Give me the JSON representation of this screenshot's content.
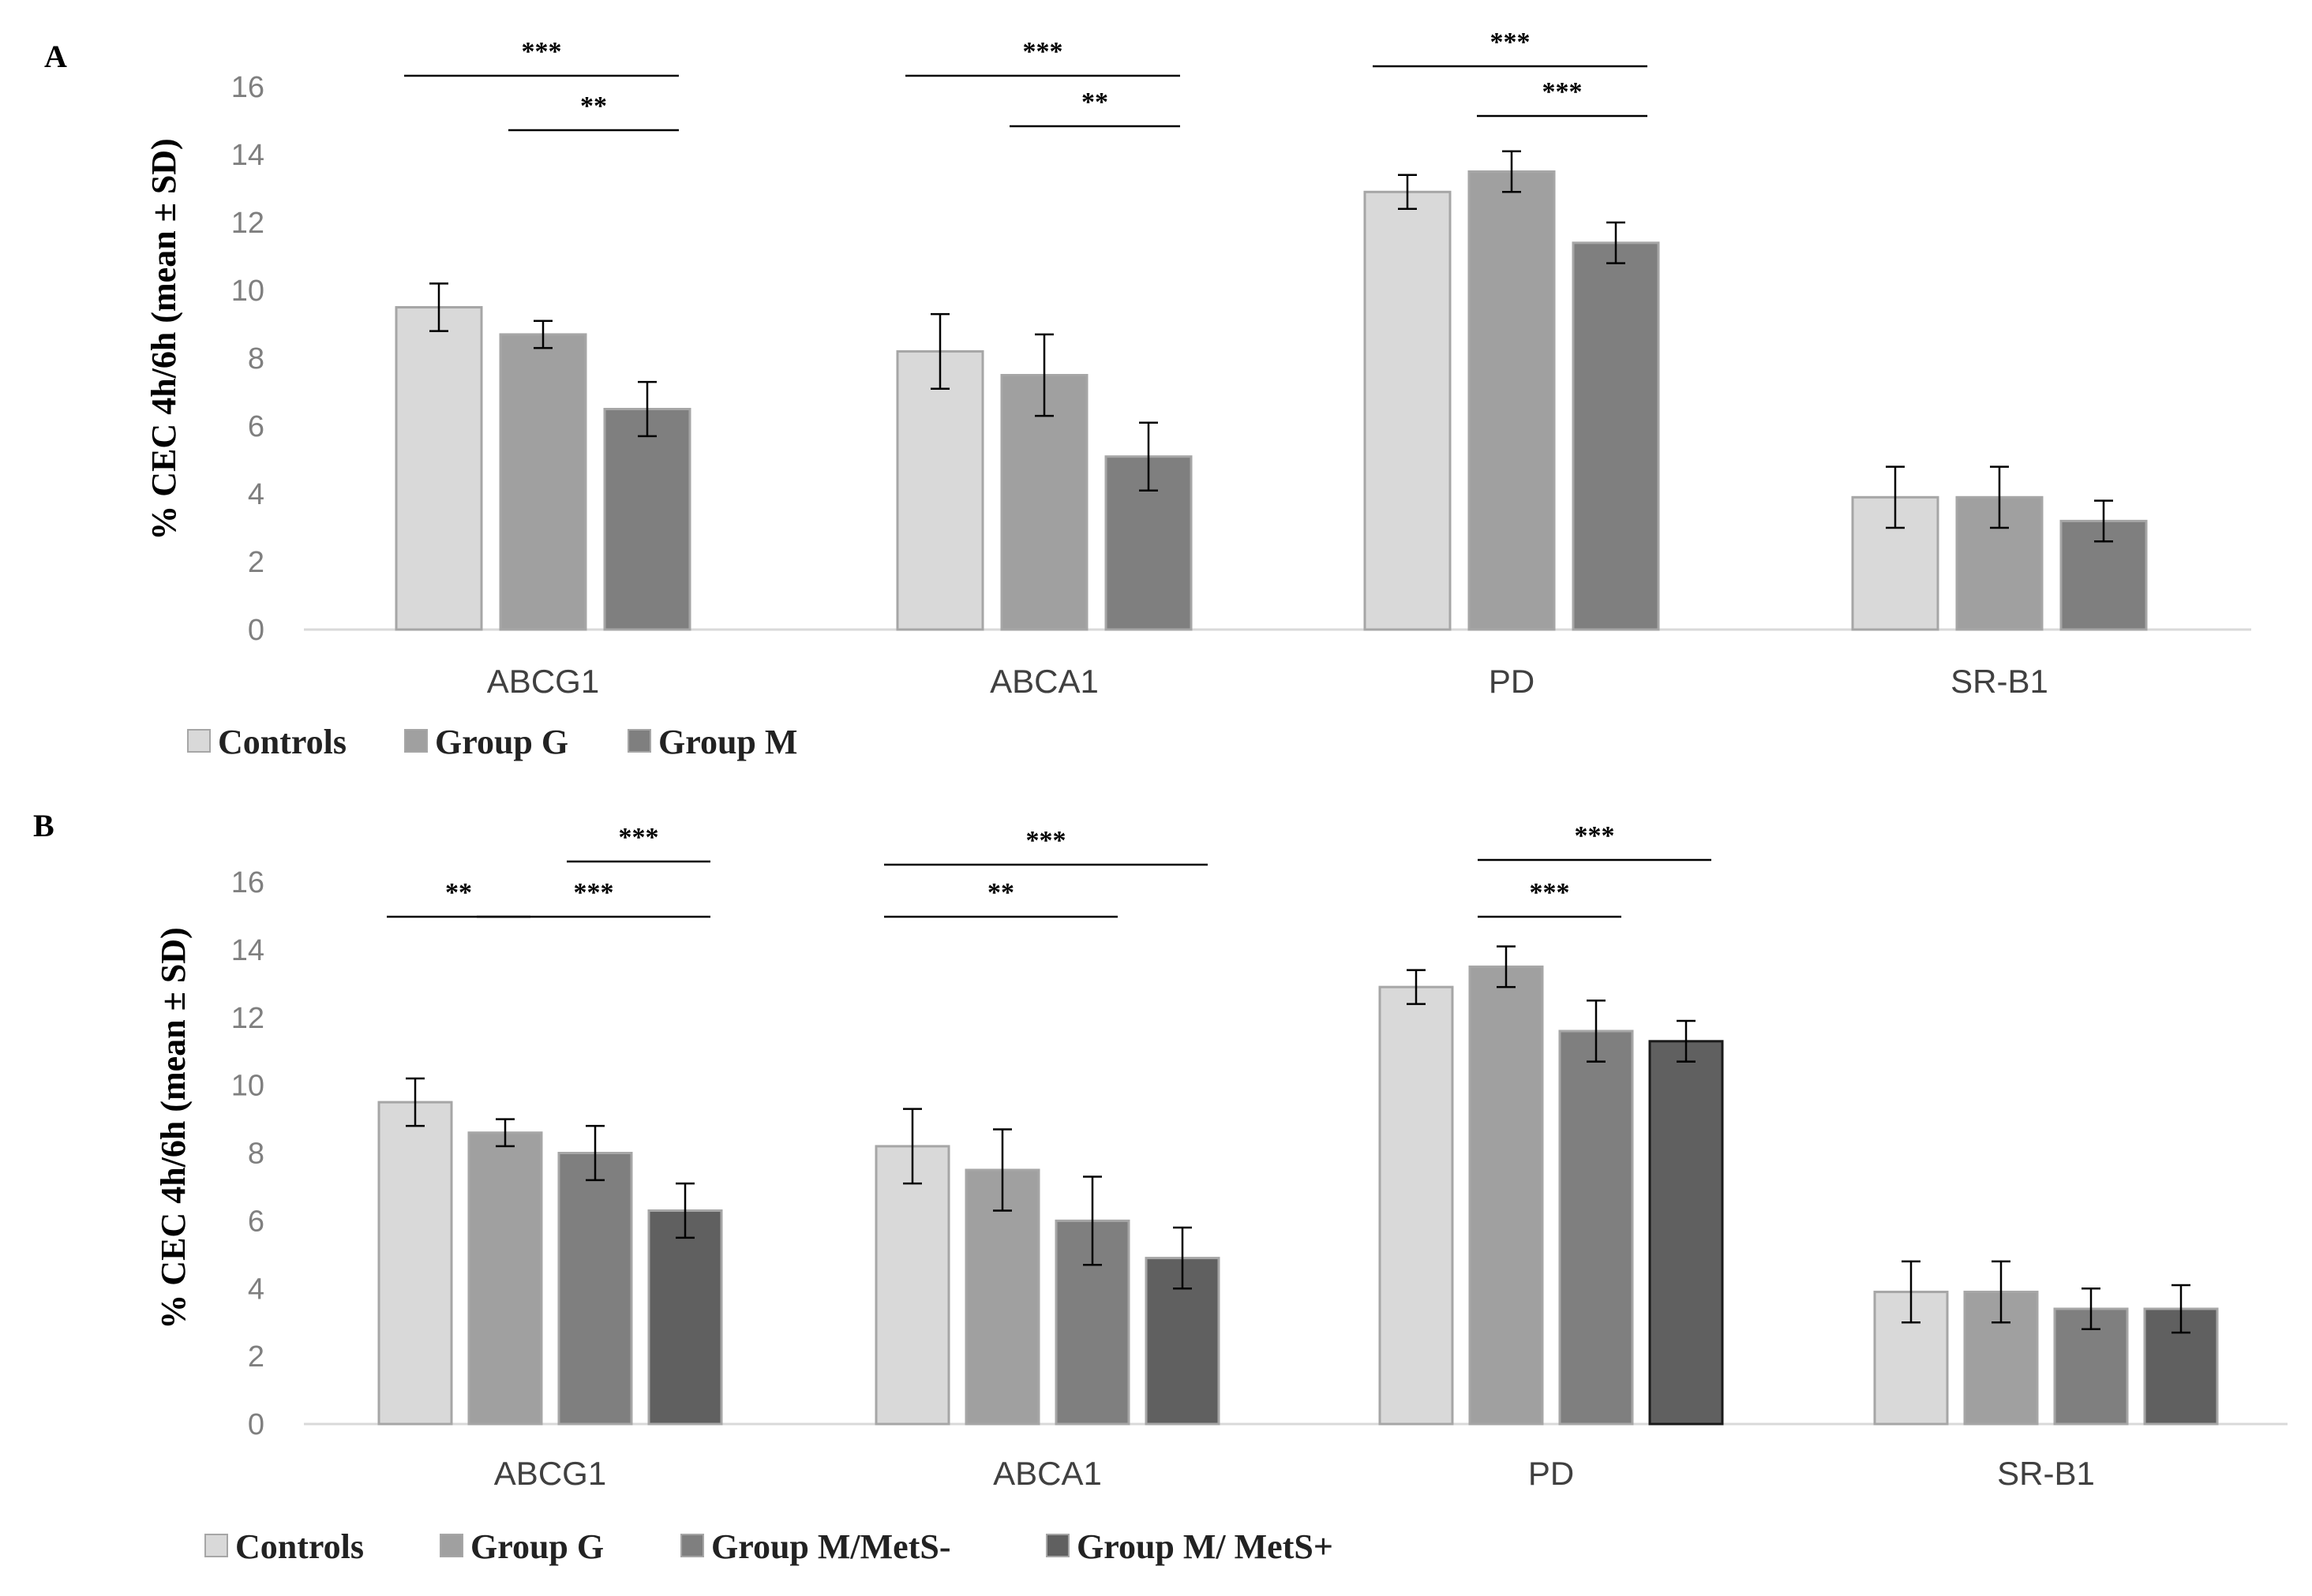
{
  "colors": {
    "controls": "#d9d9d9",
    "group_g": "#a0a0a0",
    "group_m": "#7f7f7f",
    "metsplus": "#606060",
    "bar_edge": "#a6a6a6",
    "axis": "#d9d9d9",
    "error": "#000000"
  },
  "chart_data": [
    {
      "panel": "A",
      "type": "bar",
      "ylabel": "% CEC  4h/6h (mean ± SD)",
      "ylim": [
        0,
        16
      ],
      "yticks": [
        0,
        2,
        4,
        6,
        8,
        10,
        12,
        14,
        16
      ],
      "categories": [
        "ABCG1",
        "ABCA1",
        "PD",
        "SR-B1"
      ],
      "series": [
        {
          "name": "Controls",
          "color_key": "controls",
          "values": [
            9.5,
            8.2,
            12.9,
            3.9
          ],
          "sd": [
            0.7,
            1.1,
            0.5,
            0.9
          ]
        },
        {
          "name": "Group G",
          "color_key": "group_g",
          "values": [
            8.7,
            7.5,
            13.5,
            3.9
          ],
          "sd": [
            0.4,
            1.2,
            0.6,
            0.9
          ]
        },
        {
          "name": "Group M",
          "color_key": "group_m",
          "values": [
            6.5,
            5.1,
            11.4,
            3.2
          ],
          "sd": [
            0.8,
            1.0,
            0.6,
            0.6
          ]
        }
      ],
      "legend": [
        "Controls",
        "Group G",
        "Group M"
      ],
      "significance": [
        {
          "category": 0,
          "from": 0,
          "to": 2,
          "label": "***"
        },
        {
          "category": 0,
          "from": 1,
          "to": 2,
          "label": "**"
        },
        {
          "category": 1,
          "from": 0,
          "to": 2,
          "label": "***"
        },
        {
          "category": 1,
          "from": 1,
          "to": 2,
          "label": "**"
        },
        {
          "category": 2,
          "from": 0,
          "to": 2,
          "label": "***"
        },
        {
          "category": 2,
          "from": 1,
          "to": 2,
          "label": "***"
        }
      ]
    },
    {
      "panel": "B",
      "type": "bar",
      "ylabel": "% CEC 4h/6h (mean ± SD)",
      "ylim": [
        0,
        16
      ],
      "yticks": [
        0,
        2,
        4,
        6,
        8,
        10,
        12,
        14,
        16
      ],
      "categories": [
        "ABCG1",
        "ABCA1",
        "PD",
        "SR-B1"
      ],
      "series": [
        {
          "name": "Controls",
          "color_key": "controls",
          "values": [
            9.5,
            8.2,
            12.9,
            3.9
          ],
          "sd": [
            0.7,
            1.1,
            0.5,
            0.9
          ]
        },
        {
          "name": "Group G",
          "color_key": "group_g",
          "values": [
            8.6,
            7.5,
            13.5,
            3.9
          ],
          "sd": [
            0.4,
            1.2,
            0.6,
            0.9
          ]
        },
        {
          "name": "Group M/MetS-",
          "color_key": "group_m",
          "values": [
            8.0,
            6.0,
            11.6,
            3.4
          ],
          "sd": [
            0.8,
            1.3,
            0.9,
            0.6
          ]
        },
        {
          "name": "Group M/ MetS+",
          "color_key": "metsplus",
          "values": [
            6.3,
            4.9,
            11.3,
            3.4
          ],
          "sd": [
            0.8,
            0.9,
            0.6,
            0.7
          ]
        }
      ],
      "legend": [
        "Controls",
        "Group G",
        "Group M/MetS-",
        "Group M/ MetS+"
      ],
      "significance": [
        {
          "category": 0,
          "from": 2,
          "to": 3,
          "label": "***"
        },
        {
          "category": 0,
          "from": 0,
          "to": 1,
          "label": "**"
        },
        {
          "category": 0,
          "from": 1,
          "to": 3,
          "label": "***"
        },
        {
          "category": 1,
          "from": 0,
          "to": 3,
          "label": "***"
        },
        {
          "category": 1,
          "from": 0,
          "to": 2,
          "label": "**"
        },
        {
          "category": 2,
          "from": 1,
          "to": 3,
          "label": "***"
        },
        {
          "category": 2,
          "from": 1,
          "to": 2,
          "label": "***"
        }
      ]
    }
  ]
}
